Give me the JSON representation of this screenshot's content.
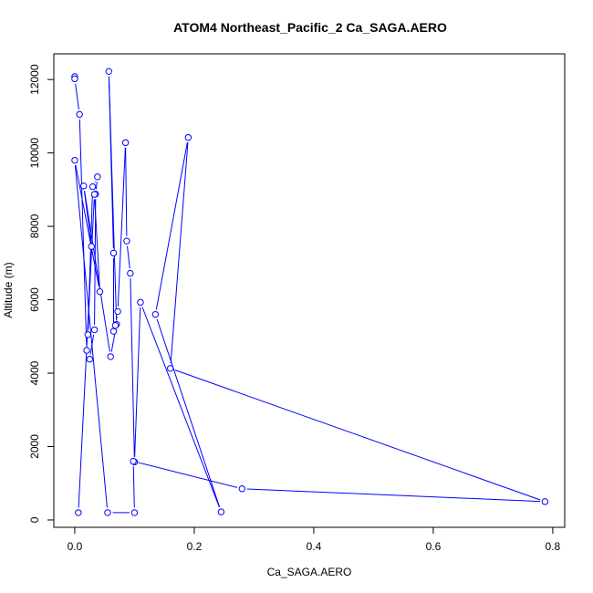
{
  "chart_data": {
    "type": "line",
    "title": "ATOM4 Northeast_Pacific_2 Ca_SAGA.AERO",
    "xlabel": "Ca_SAGA.AERO",
    "ylabel": "Altitude (m)",
    "xlim": [
      -0.035,
      0.82
    ],
    "ylim": [
      -200,
      12700
    ],
    "x_ticks": [
      0.0,
      0.2,
      0.4,
      0.6,
      0.8
    ],
    "x_tick_labels": [
      "0.0",
      "0.2",
      "0.4",
      "0.6",
      "0.8"
    ],
    "y_ticks": [
      0,
      2000,
      4000,
      6000,
      8000,
      10000,
      12000
    ],
    "y_tick_labels": [
      "0",
      "2000",
      "4000",
      "6000",
      "8000",
      "10000",
      "12000"
    ],
    "grid": false,
    "legend": "none",
    "color": "#0000ff",
    "series": [
      {
        "x": [
          0.0,
          0.0,
          0.008,
          0.02,
          0.025,
          0.033,
          0.035,
          0.038,
          0.03,
          0.022,
          0.028,
          0.015,
          0.06,
          0.07,
          0.057,
          0.065,
          0.065,
          0.068,
          0.072,
          0.085,
          0.087,
          0.093,
          0.1,
          0.11,
          0.245,
          0.135,
          0.19,
          0.16,
          0.787,
          0.28,
          0.098,
          0.1,
          0.055,
          0.0,
          0.042,
          0.033,
          0.006
        ],
        "y": [
          12080,
          12020,
          11050,
          4620,
          4380,
          5180,
          8880,
          9350,
          9080,
          5050,
          7450,
          9100,
          4450,
          5330,
          12220,
          7270,
          5140,
          5300,
          5680,
          10280,
          7600,
          6720,
          1580,
          5930,
          220,
          5600,
          10420,
          4130,
          500,
          850,
          1600,
          200,
          200,
          9800,
          6220,
          8870,
          200
        ]
      }
    ]
  }
}
